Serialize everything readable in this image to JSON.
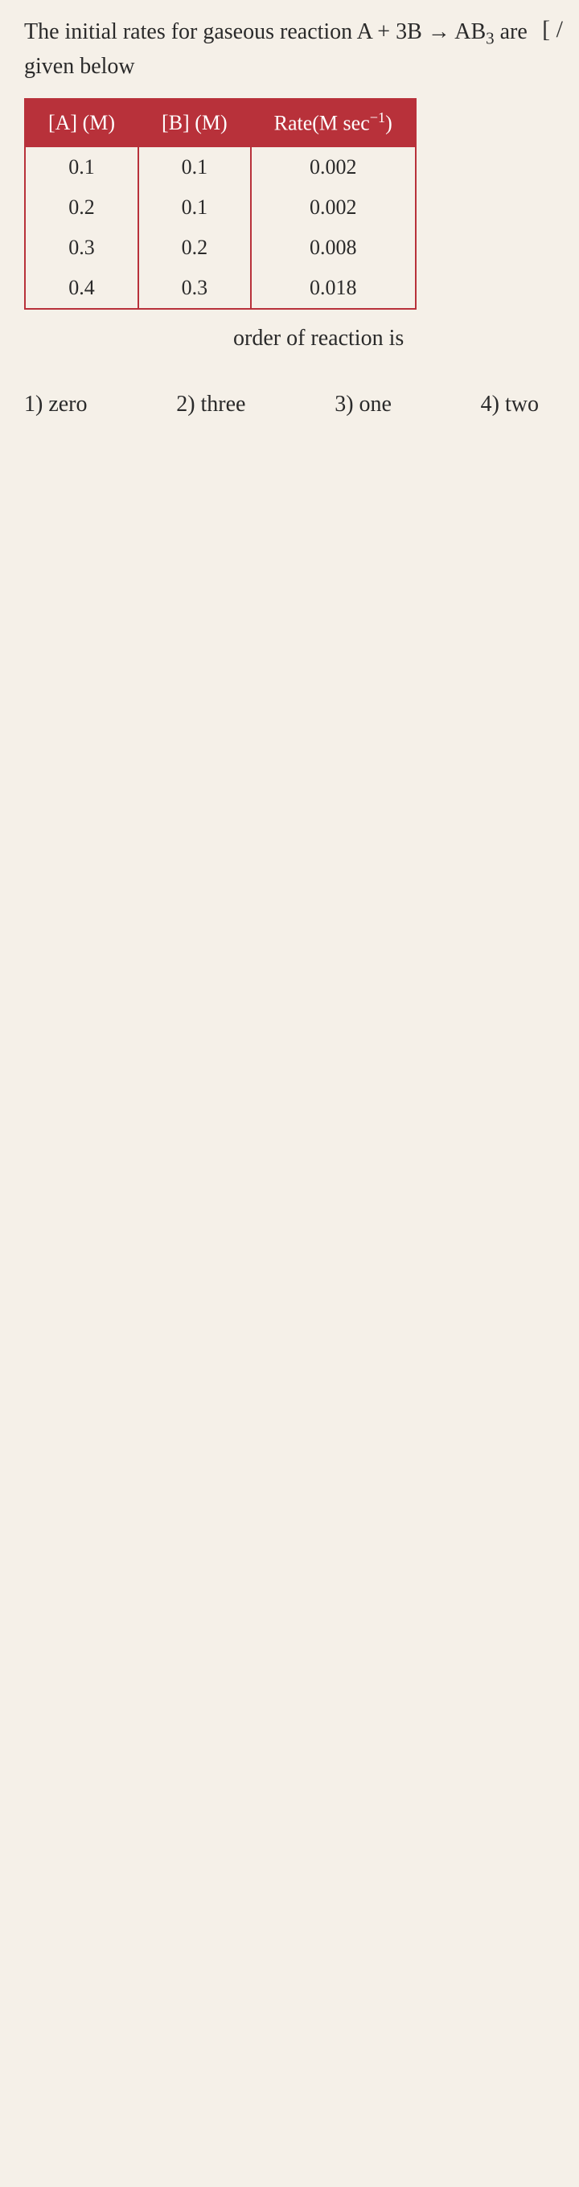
{
  "question": {
    "text_before": "The initial rates for gaseous reaction A + 3B → AB",
    "subscript": "3",
    "text_after": " are given below"
  },
  "table": {
    "headers": {
      "col1": "[A] (M)",
      "col2": "[B] (M)",
      "col3_pre": "Rate(M sec",
      "col3_sup": "−1",
      "col3_post": ")"
    },
    "rows": [
      {
        "a": "0.1",
        "b": "0.1",
        "rate": "0.002"
      },
      {
        "a": "0.2",
        "b": "0.1",
        "rate": "0.002"
      },
      {
        "a": "0.3",
        "b": "0.2",
        "rate": "0.008"
      },
      {
        "a": "0.4",
        "b": "0.3",
        "rate": "0.018"
      }
    ]
  },
  "order_note": "order of reaction is",
  "options": {
    "o1": "1) zero",
    "o2": "2) three",
    "o3": "3) one",
    "o4": "4) two"
  },
  "bracket": "[ /",
  "colors": {
    "header_bg": "#b8313a",
    "header_fg": "#ffffff",
    "page_bg": "#f5f0e8",
    "text": "#2a2a2a"
  }
}
